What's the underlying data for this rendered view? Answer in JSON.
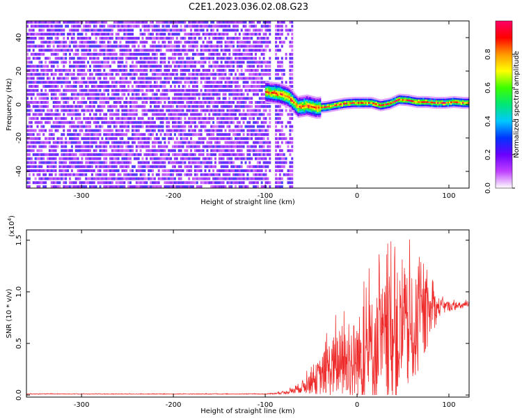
{
  "title": "C2E1.2023.036.02.08.G23",
  "chart_data": [
    {
      "type": "heatmap",
      "panel": "spectrogram",
      "xlabel": "Height of straight line (km)",
      "ylabel": "Frequency (Hz)",
      "xlim": [
        -360,
        122
      ],
      "ylim": [
        -50,
        50
      ],
      "x_ticks": [
        -300,
        -200,
        -100,
        0,
        100
      ],
      "x_tick_labels": [
        "-300",
        "-200",
        "-100",
        "0",
        "100"
      ],
      "y_ticks": [
        -40,
        -20,
        0,
        20,
        40
      ],
      "y_tick_labels": [
        "-40",
        "-20",
        "0",
        "20",
        "40"
      ],
      "noise_region_x": [
        -360,
        -70
      ],
      "signal_track": {
        "x": [
          -100,
          -85,
          -75,
          -65,
          -55,
          -45,
          -35,
          -25,
          -15,
          -5,
          5,
          15,
          25,
          35,
          45,
          55,
          65,
          75,
          85,
          95,
          105,
          115,
          122
        ],
        "y": [
          7,
          6,
          4,
          -2,
          -1,
          -2.5,
          -2,
          -1,
          0,
          0.5,
          0.5,
          0.5,
          -1,
          0,
          2.5,
          2,
          1,
          1,
          0.5,
          0.5,
          1,
          0.5,
          0.5
        ]
      },
      "colorbar": {
        "label": "Normalized spectral amplitude",
        "range": [
          0.0,
          1.0
        ],
        "ticks": [
          0.0,
          0.2,
          0.4,
          0.6,
          0.8
        ],
        "tick_labels": [
          "0.0",
          "0.2",
          "0.4",
          "0.6",
          "0.8"
        ],
        "colors": [
          "#ffffff",
          "#c040ff",
          "#6a00ff",
          "#0033ff",
          "#00c8ff",
          "#00e676",
          "#3cff00",
          "#ffff00",
          "#ff9900",
          "#ff0000",
          "#ff0066"
        ]
      }
    },
    {
      "type": "line",
      "panel": "snr",
      "xlabel": "Height of straight line (km)",
      "ylabel": "SNR (10 * v/v)",
      "y_scale_label": "(x10",
      "y_scale_exponent": "4",
      "y_scale_suffix": ")",
      "xlim": [
        -360,
        122
      ],
      "ylim": [
        -0.02,
        1.6
      ],
      "x_ticks": [
        -300,
        -200,
        -100,
        0,
        100
      ],
      "x_tick_labels": [
        "-300",
        "-200",
        "-100",
        "0",
        "100"
      ],
      "y_ticks": [
        0.0,
        0.5,
        1.0,
        1.5
      ],
      "y_tick_labels": [
        "0.0",
        "0.5",
        "1.0",
        "1.5"
      ],
      "series": [
        {
          "name": "SNR",
          "color": "#ee2c2c",
          "envelope": {
            "x": [
              -360,
              -100,
              -80,
              -70,
              -60,
              -50,
              -40,
              -30,
              -20,
              -10,
              0,
              10,
              20,
              30,
              40,
              50,
              60,
              70,
              80,
              90,
              100,
              110,
              122
            ],
            "base": [
              0.01,
              0.01,
              0.02,
              0.04,
              0.08,
              0.12,
              0.18,
              0.26,
              0.3,
              0.3,
              0.34,
              0.4,
              0.45,
              0.5,
              0.55,
              0.58,
              0.6,
              0.7,
              0.8,
              0.85,
              0.86,
              0.86,
              0.88
            ],
            "spread": [
              0.005,
              0.005,
              0.02,
              0.05,
              0.1,
              0.18,
              0.3,
              0.45,
              0.55,
              0.6,
              0.7,
              0.8,
              0.9,
              1.0,
              1.1,
              1.0,
              0.9,
              0.7,
              0.4,
              0.15,
              0.08,
              0.06,
              0.05
            ]
          }
        }
      ]
    }
  ]
}
